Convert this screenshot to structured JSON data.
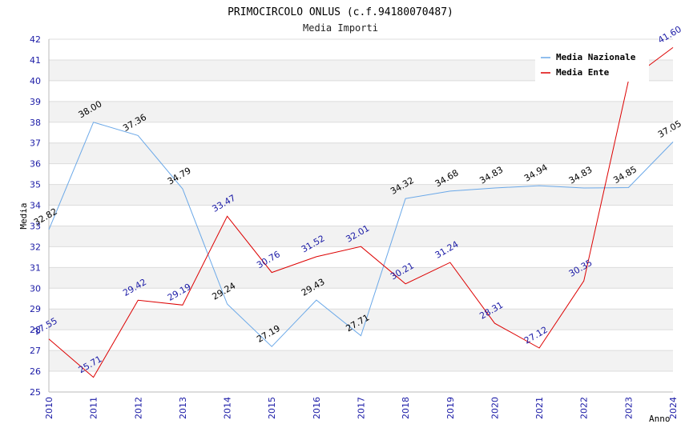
{
  "chart_data": {
    "type": "line",
    "title": "PRIMOCIRCOLO ONLUS (c.f.94180070487)",
    "subtitle": "Media Importi",
    "xlabel": "Anno",
    "ylabel": "Media",
    "ylim": [
      25,
      42
    ],
    "grid": true,
    "legend_position": "top-right",
    "categories": [
      "2010",
      "2011",
      "2012",
      "2013",
      "2014",
      "2015",
      "2016",
      "2017",
      "2018",
      "2019",
      "2020",
      "2021",
      "2022",
      "2023",
      "2024"
    ],
    "y_ticks": [
      "25",
      "26",
      "27",
      "28",
      "29",
      "30",
      "31",
      "32",
      "33",
      "34",
      "35",
      "36",
      "37",
      "38",
      "39",
      "40",
      "41",
      "42"
    ],
    "series": [
      {
        "name": "Media Nazionale",
        "color": "#6aa8e8",
        "label_color": "#000000",
        "values": [
          32.82,
          38.0,
          37.36,
          34.79,
          29.24,
          27.19,
          29.43,
          27.71,
          34.32,
          34.68,
          34.83,
          34.94,
          34.83,
          34.85,
          37.05
        ],
        "labels": [
          "32.82",
          "38.00",
          "37.36",
          "34.79",
          "29.24",
          "27.19",
          "29.43",
          "27.71",
          "34.32",
          "34.68",
          "34.83",
          "34.94",
          "34.83",
          "34.85",
          "37.05"
        ]
      },
      {
        "name": "Media Ente",
        "color": "#dd0000",
        "label_color": "#1a1aa6",
        "values": [
          27.55,
          25.71,
          29.42,
          29.19,
          33.47,
          30.76,
          31.52,
          32.01,
          30.21,
          31.24,
          28.31,
          27.12,
          30.35,
          40.0,
          41.6
        ],
        "labels": [
          "27.55",
          "25.71",
          "29.42",
          "29.19",
          "33.47",
          "30.76",
          "31.52",
          "32.01",
          "30.21",
          "31.24",
          "28.31",
          "27.12",
          "30.35",
          "",
          "41.60"
        ]
      }
    ]
  }
}
